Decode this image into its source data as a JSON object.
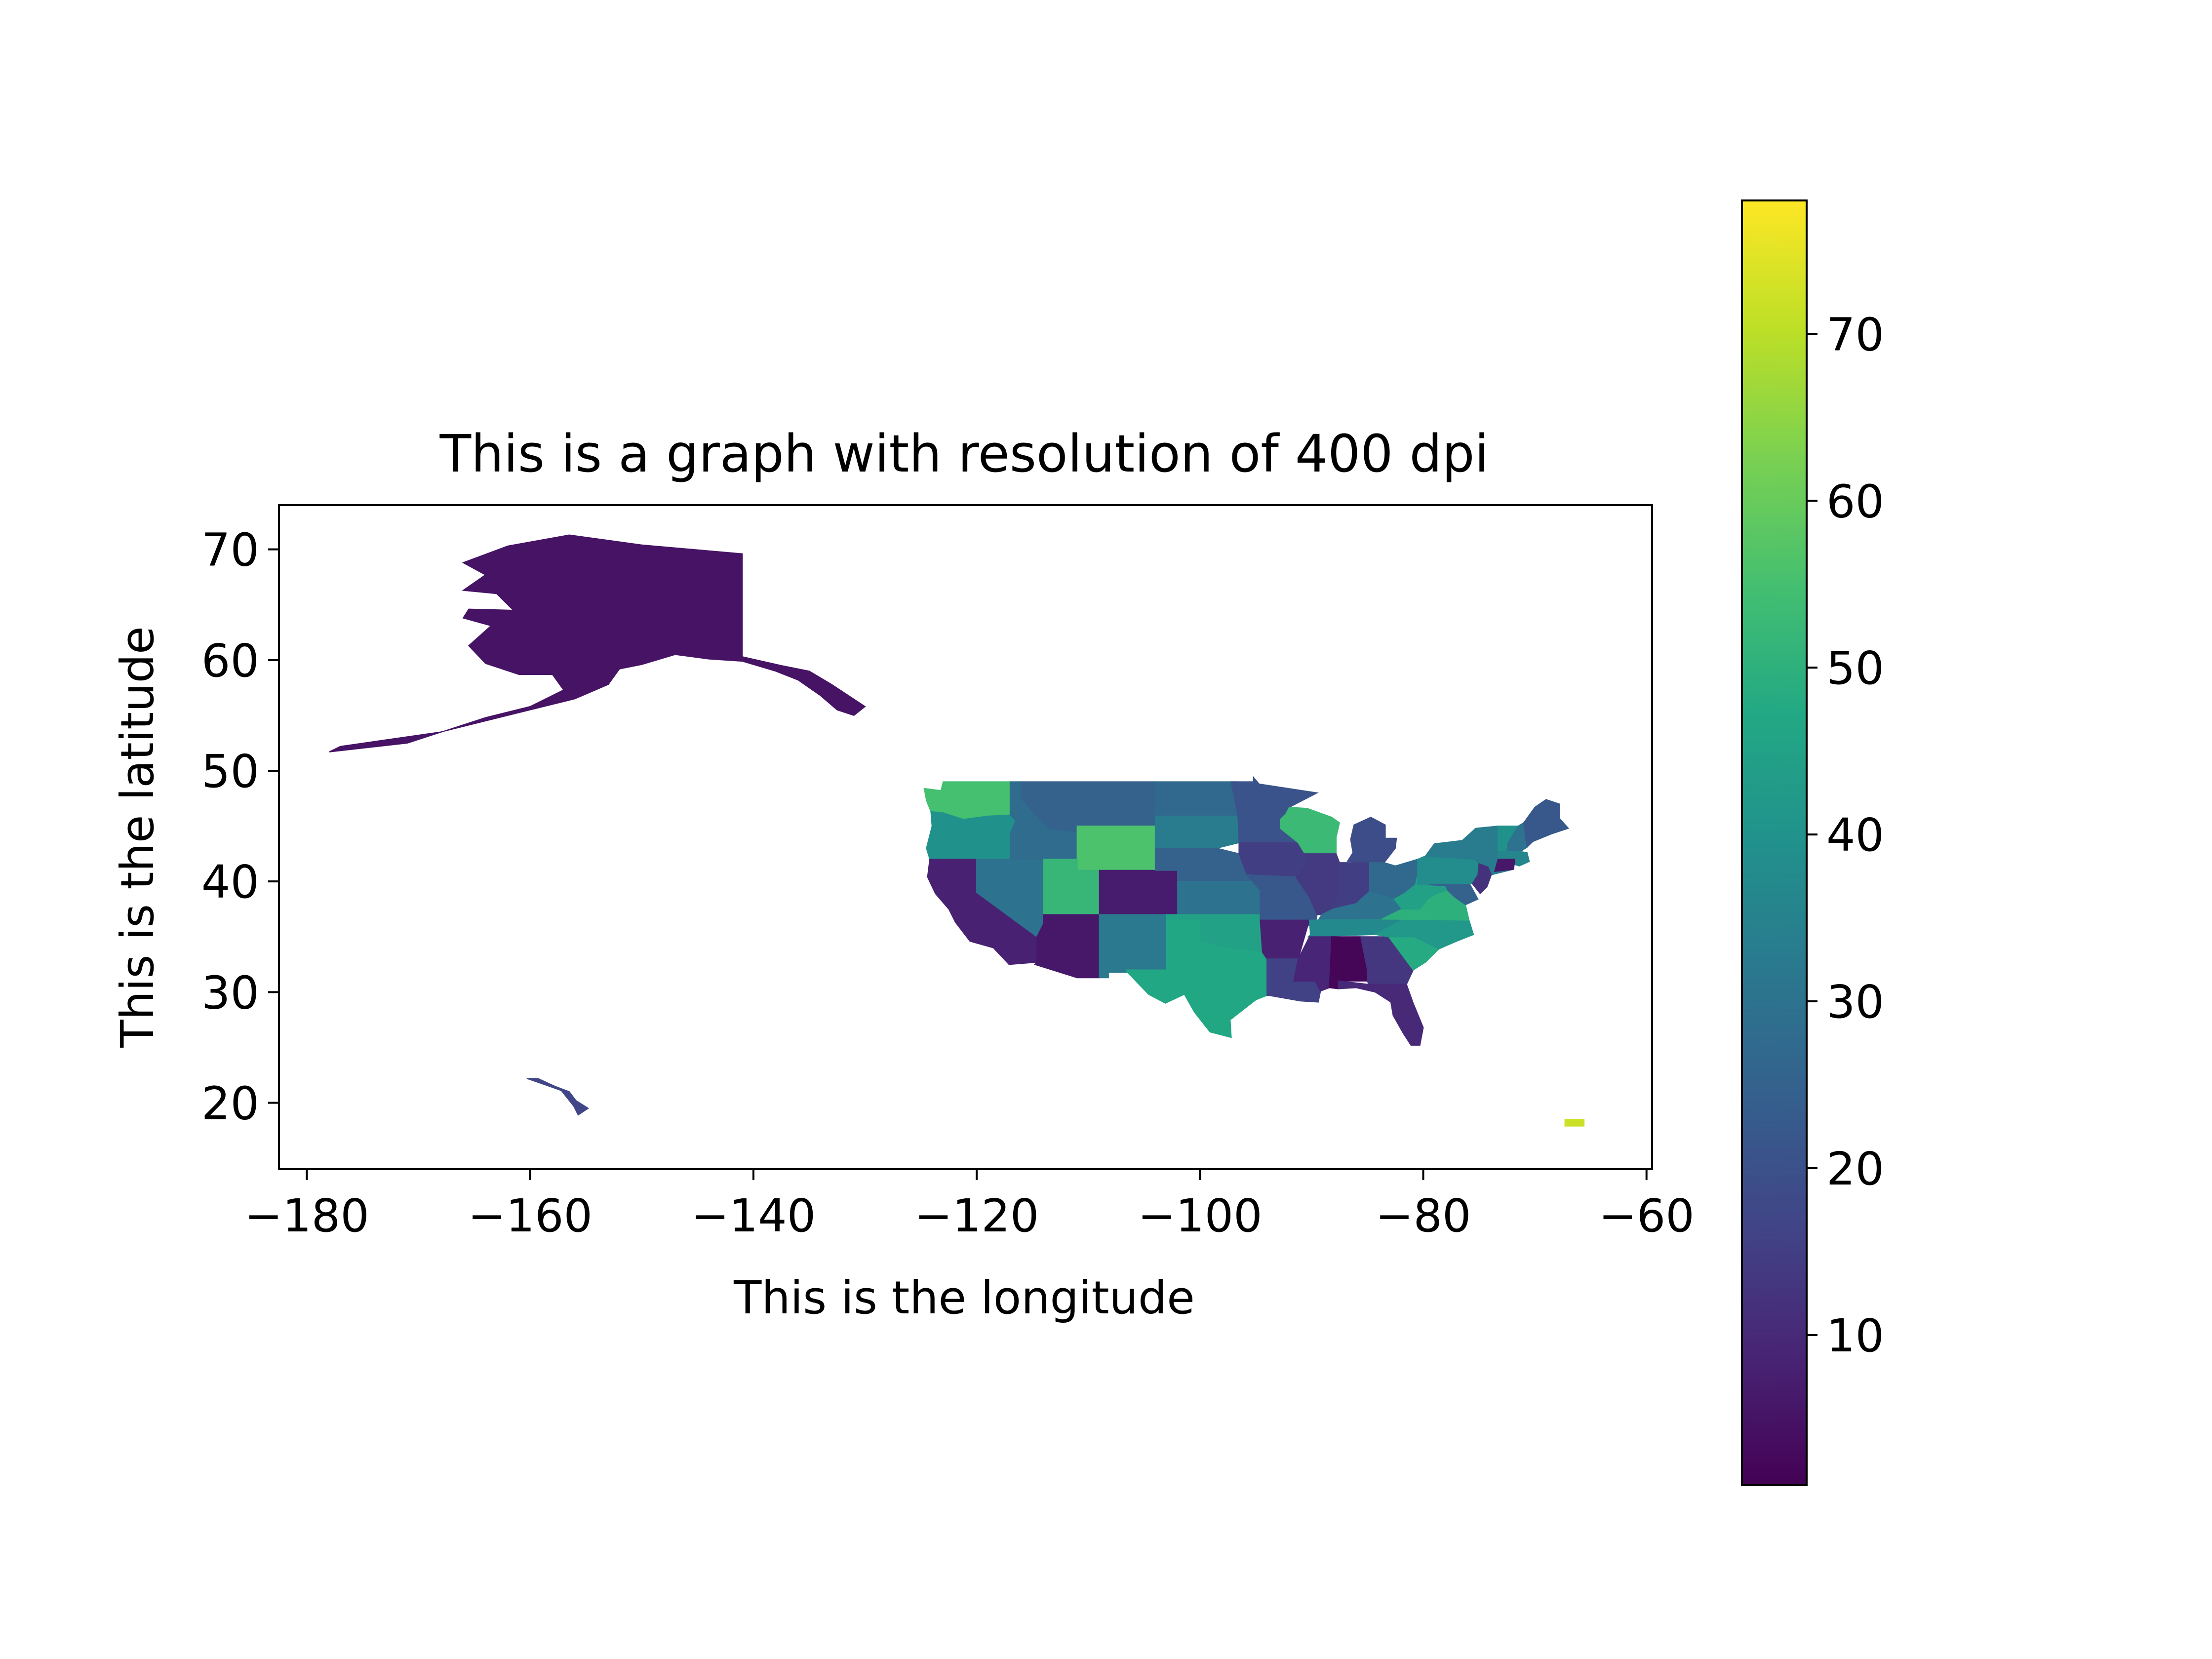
{
  "chart_data": {
    "type": "choropleth",
    "title": "This is a graph with resolution of 400 dpi",
    "xlabel": "This is the longitude",
    "ylabel": "This is the latitude",
    "xlim": [
      -182.5,
      -59.5
    ],
    "ylim": [
      14,
      74
    ],
    "x_ticks": [
      -180,
      -160,
      -140,
      -120,
      -100,
      -80,
      -60
    ],
    "x_tick_labels": [
      "−180",
      "−160",
      "−140",
      "−120",
      "−100",
      "−80",
      "−60"
    ],
    "y_ticks": [
      20,
      30,
      40,
      50,
      60,
      70
    ],
    "y_tick_labels": [
      "20",
      "30",
      "40",
      "50",
      "60",
      "70"
    ],
    "grid": false,
    "colormap": "viridis",
    "colorbar": {
      "range": [
        1,
        78
      ],
      "ticks": [
        10,
        20,
        30,
        40,
        50,
        60,
        70
      ],
      "tick_labels": [
        "10",
        "20",
        "30",
        "40",
        "50",
        "60",
        "70"
      ],
      "location": "right"
    },
    "regions": [
      {
        "name": "Alaska",
        "value": 5
      },
      {
        "name": "Hawaii",
        "value": 17
      },
      {
        "name": "Puerto Rico",
        "value": 72
      },
      {
        "name": "Washington",
        "value": 55
      },
      {
        "name": "Oregon",
        "value": 40
      },
      {
        "name": "California",
        "value": 8
      },
      {
        "name": "Nevada",
        "value": 30
      },
      {
        "name": "Idaho",
        "value": 28
      },
      {
        "name": "Montana",
        "value": 25
      },
      {
        "name": "Wyoming",
        "value": 56
      },
      {
        "name": "Utah",
        "value": 52
      },
      {
        "name": "Arizona",
        "value": 6
      },
      {
        "name": "Colorado",
        "value": 7
      },
      {
        "name": "New Mexico",
        "value": 32
      },
      {
        "name": "North Dakota",
        "value": 27
      },
      {
        "name": "South Dakota",
        "value": 33
      },
      {
        "name": "Nebraska",
        "value": 25
      },
      {
        "name": "Kansas",
        "value": 30
      },
      {
        "name": "Oklahoma",
        "value": 45
      },
      {
        "name": "Texas",
        "value": 47
      },
      {
        "name": "Minnesota",
        "value": 21
      },
      {
        "name": "Iowa",
        "value": 15
      },
      {
        "name": "Missouri",
        "value": 22
      },
      {
        "name": "Arkansas",
        "value": 8
      },
      {
        "name": "Louisiana",
        "value": 16
      },
      {
        "name": "Wisconsin",
        "value": 53
      },
      {
        "name": "Illinois",
        "value": 14
      },
      {
        "name": "Michigan",
        "value": 19
      },
      {
        "name": "Indiana",
        "value": 15
      },
      {
        "name": "Ohio",
        "value": 27
      },
      {
        "name": "Kentucky",
        "value": 30
      },
      {
        "name": "Tennessee",
        "value": 37
      },
      {
        "name": "Mississippi",
        "value": 9
      },
      {
        "name": "Alabama",
        "value": 2
      },
      {
        "name": "Georgia",
        "value": 13
      },
      {
        "name": "Florida",
        "value": 10
      },
      {
        "name": "South Carolina",
        "value": 48
      },
      {
        "name": "North Carolina",
        "value": 42
      },
      {
        "name": "Virginia",
        "value": 50
      },
      {
        "name": "West Virginia",
        "value": 45
      },
      {
        "name": "Pennsylvania",
        "value": 38
      },
      {
        "name": "New York",
        "value": 33
      },
      {
        "name": "Maryland",
        "value": 25
      },
      {
        "name": "New Jersey",
        "value": 12
      },
      {
        "name": "Vermont",
        "value": 40
      },
      {
        "name": "New Hampshire",
        "value": 30
      },
      {
        "name": "Maine",
        "value": 22
      },
      {
        "name": "Massachusetts",
        "value": 36
      },
      {
        "name": "Connecticut",
        "value": 6
      }
    ]
  }
}
